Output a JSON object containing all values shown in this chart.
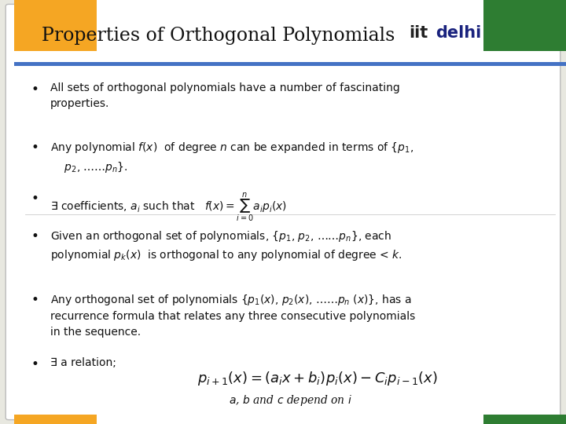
{
  "title": "Properties of Orthogonal Polynomials",
  "bg_color": "#e8e8e0",
  "blue_line_color": "#4472c4",
  "orange_color": "#f5a623",
  "green_color": "#2e7d32",
  "font_color": "#111111",
  "iit_color": "#222222",
  "delhi_color": "#1a237e",
  "bullet1": "All sets of orthogonal polynomials have a number of fascinating\nproperties.",
  "bullet2": "Any polynomial $f(x)$  of degree $n$ can be expanded in terms of {$p_1$,\n    $p_2$, ……$p_n$}.",
  "bullet3_pre": "∃ coefficients, $a_i$ such that   ",
  "bullet4": "Given an orthogonal set of polynomials, {$p_1$, $p_2$, ……$p_n$}, each\npolynomial $p_k(x)$  is orthogonal to any polynomial of degree < $k$.",
  "bullet5": "Any orthogonal set of polynomials {$p_1(x)$, $p_2(x)$, ……$p_n$ $(x)$}, has a\nrecurrence formula that relates any three consecutive polynomials\nin the sequence.",
  "bullet6": "∃ a relation;",
  "footer": "$a$, $b$ and $c$ depend on $i$"
}
